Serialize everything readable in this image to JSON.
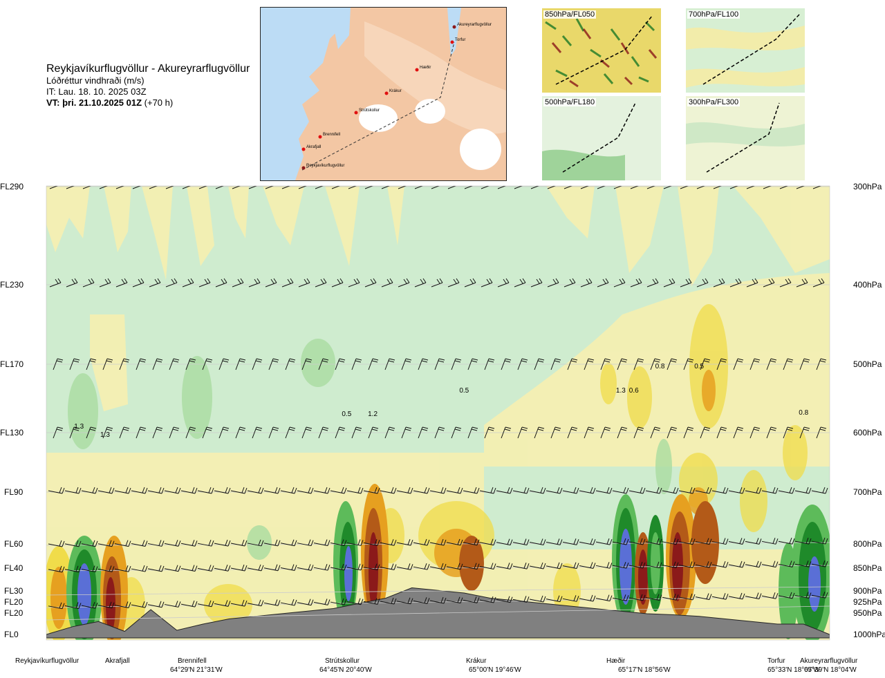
{
  "header": {
    "route_title": "Reykjavíkurflugvöllur - Akureyrarflugvöllur",
    "parameter": "Lóðréttur vindhraði (m/s)",
    "issue_time": "IT: Lau. 18. 10. 2025 03Z",
    "valid_time_bold": "VT: þri. 21.10.2025 01Z",
    "valid_time_offset": "(+70 h)"
  },
  "map": {
    "route_points": [
      {
        "name": "Akureyrarflugvöllur"
      },
      {
        "name": "Torfur"
      },
      {
        "name": "Hæðir"
      },
      {
        "name": "Krákur"
      },
      {
        "name": "Strútskollur"
      },
      {
        "name": "Brennifell"
      },
      {
        "name": "Akrafjall"
      },
      {
        "name": "Reykjavíkurflugvöllur"
      }
    ]
  },
  "mini_maps": [
    {
      "label": "850hPa/FL050"
    },
    {
      "label": "700hPa/FL100"
    },
    {
      "label": "500hPa/FL180"
    },
    {
      "label": "300hPa/FL300"
    }
  ],
  "colors": {
    "sink_strong": "#5a6fd6",
    "sink_mid": "#1f8a2a",
    "sink_weak": "#5dbb5a",
    "sink_light": "#a9dca0",
    "neutral": "#cfeccf",
    "rise_light": "#f6f0b0",
    "rise_weak": "#f0dc4a",
    "rise_mid": "#e6a020",
    "rise_strong": "#b35a18",
    "rise_max": "#8b1a1a",
    "terrain": "#808080"
  },
  "chart_data": {
    "type": "heatmap",
    "title": "Lóðréttur vindhraði (m/s)",
    "flight_levels": [
      "FL290",
      "FL230",
      "FL170",
      "FL130",
      "FL90",
      "FL60",
      "FL40",
      "FL30",
      "FL20",
      "FL20",
      "FL0"
    ],
    "pressure_levels": [
      "300hPa",
      "400hPa",
      "500hPa",
      "600hPa",
      "700hPa",
      "800hPa",
      "850hPa",
      "900hPa",
      "925hPa",
      "950hPa",
      "1000hPa"
    ],
    "stations": [
      {
        "name": "Reykjavíkurflugvöllur",
        "coord": ""
      },
      {
        "name": "Akrafjall",
        "coord": ""
      },
      {
        "name": "Brennifell",
        "coord": "64°29'N 21°31'W"
      },
      {
        "name": "Strútskollur",
        "coord": "64°45'N 20°40'W"
      },
      {
        "name": "Krákur",
        "coord": "65°00'N 19°46'W"
      },
      {
        "name": "Hæðir",
        "coord": "65°17'N 18°56'W"
      },
      {
        "name": "Torfur",
        "coord": "65°33'N 18°07'W"
      },
      {
        "name": "Akureyrarflugvöllur",
        "coord": "65°39'N 18°04'W"
      }
    ],
    "terrain_height_m": [
      0,
      150,
      250,
      60,
      480,
      80,
      200,
      300,
      350,
      400,
      450,
      500,
      600,
      700,
      900,
      850,
      800,
      700,
      650,
      600,
      550,
      500,
      450,
      400,
      380,
      350,
      300,
      250,
      200,
      200,
      0
    ],
    "extreme_labels": [
      {
        "text": "1.3",
        "km": 5
      },
      {
        "text": "1.3",
        "km": 9
      },
      {
        "text": "0.5",
        "km": 46
      },
      {
        "text": "1.2",
        "km": 50
      },
      {
        "text": "0.5",
        "km": 64
      },
      {
        "text": "1.3",
        "km": 88
      },
      {
        "text": "0.6",
        "km": 90
      },
      {
        "text": "0.8",
        "km": 94
      },
      {
        "text": "0.5",
        "km": 100
      },
      {
        "text": "0.8",
        "km": 116
      }
    ]
  }
}
